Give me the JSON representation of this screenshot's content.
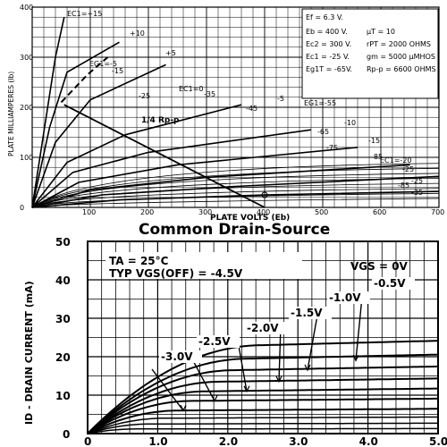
{
  "chart_data": [
    {
      "type": "line",
      "title": "",
      "xlabel": "PLATE VOLTS (Eb)",
      "ylabel": "PLATE MILLIAMPERES (Ib)",
      "xlim": [
        0,
        700
      ],
      "ylim": [
        0,
        400
      ],
      "xticks": [
        "100",
        "200",
        "300",
        "400",
        "500",
        "600",
        "700"
      ],
      "yticks": [
        "0",
        "100",
        "200",
        "300",
        "400"
      ],
      "grid": true,
      "specs": [
        "Ef = 6.3 V.",
        "Eb = 400 V.",
        "μT = 10",
        "Ec2 = 300 V.",
        "rPT = 2000 OHMS",
        "Ec1 = -25 V.",
        "gm = 5000 μMHOS",
        "Eg1T = -65V.",
        "Rp-p = 6600 OHMS"
      ],
      "annotation": "1/4 Rp-p",
      "load_line": {
        "x": [
          55,
          400
        ],
        "y": [
          205,
          0
        ]
      },
      "series": [
        {
          "name": "+15",
          "x": [
            0,
            20,
            40,
            55
          ],
          "y": [
            0,
            150,
            300,
            380
          ]
        },
        {
          "name": "+10",
          "x": [
            0,
            30,
            60,
            150
          ],
          "y": [
            0,
            160,
            270,
            330
          ]
        },
        {
          "name": "+5",
          "x": [
            0,
            40,
            100,
            230
          ],
          "y": [
            0,
            130,
            215,
            285
          ]
        },
        {
          "name": "-5",
          "x": [
            0,
            60,
            160,
            360
          ],
          "y": [
            0,
            90,
            145,
            205
          ]
        },
        {
          "name": "-10",
          "x": [
            0,
            70,
            200,
            480
          ],
          "y": [
            0,
            70,
            110,
            155
          ]
        },
        {
          "name": "-15",
          "x": [
            0,
            80,
            250,
            560
          ],
          "y": [
            0,
            50,
            85,
            120
          ]
        },
        {
          "name": "-20",
          "x": [
            0,
            100,
            300,
            650
          ],
          "y": [
            0,
            35,
            60,
            85
          ]
        },
        {
          "name": "-25",
          "x": [
            0,
            120,
            350,
            700
          ],
          "y": [
            0,
            25,
            42,
            62
          ]
        },
        {
          "name": "-35",
          "x": [
            0,
            150,
            400,
            700
          ],
          "y": [
            0,
            15,
            25,
            32
          ]
        }
      ],
      "curve_labels": [
        "EC1=+15",
        "+10",
        "+5",
        "EG1=-5",
        "-15",
        "-25",
        "EC1=0",
        "-35",
        "-45",
        "-5",
        "EG1=-55",
        "-65",
        "-75",
        "-10",
        "-15",
        "-85",
        "EC1=-20",
        "-25",
        "-85",
        "-35",
        "-25"
      ]
    },
    {
      "type": "line",
      "title": "Common Drain-Source",
      "xlabel": "",
      "ylabel": "ID - DRAIN CURRENT (mA)",
      "xlim": [
        0,
        5.0
      ],
      "ylim": [
        0,
        50
      ],
      "xticks": [
        "0",
        "1.0",
        "2.0",
        "3.0",
        "4.0",
        "5.0"
      ],
      "yticks": [
        "0",
        "10",
        "20",
        "30",
        "40",
        "50"
      ],
      "grid": true,
      "conditions": [
        "TA = 25°C",
        "TYP VGS(OFF) = -4.5V"
      ],
      "legend_header": "VGS = 0V",
      "series": [
        {
          "name": "VGS = 0V",
          "knee": 2.5,
          "isat": 23
        },
        {
          "name": "-0.5V",
          "knee": 2.3,
          "isat": 19.5
        },
        {
          "name": "-1.0V",
          "knee": 2.1,
          "isat": 16.5
        },
        {
          "name": "-1.5V",
          "knee": 1.9,
          "isat": 13.5
        },
        {
          "name": "-2.0V",
          "knee": 1.7,
          "isat": 11
        },
        {
          "name": "-2.5V",
          "knee": 1.5,
          "isat": 8.5
        },
        {
          "name": "-3.0V",
          "knee": 1.3,
          "isat": 6
        }
      ],
      "extra_curves": [
        {
          "knee": 1.1,
          "isat": 4
        },
        {
          "knee": 0.9,
          "isat": 2.5
        },
        {
          "knee": 0.7,
          "isat": 1.2
        }
      ]
    }
  ]
}
